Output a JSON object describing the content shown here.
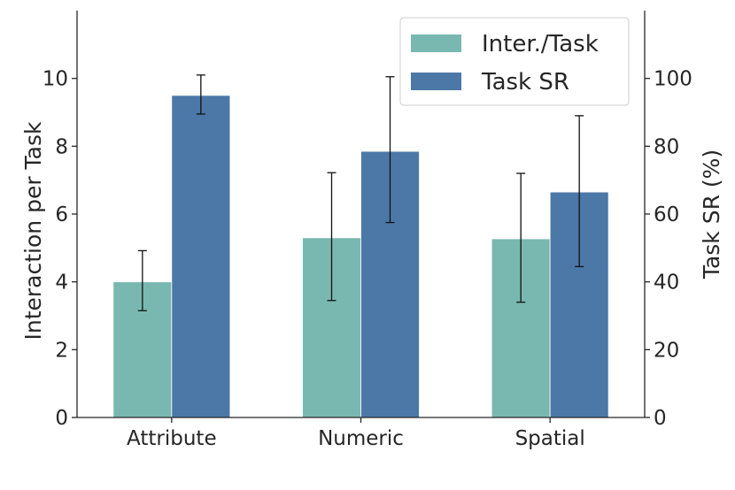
{
  "chart_data": {
    "type": "bar",
    "categories": [
      "Attribute",
      "Numeric",
      "Spatial"
    ],
    "series": [
      {
        "name": "Inter./Task",
        "axis": "left",
        "color": "#79b8b0",
        "values": [
          4.0,
          5.3,
          5.27
        ],
        "err_low": [
          3.15,
          3.45,
          3.4
        ],
        "err_high": [
          4.92,
          7.22,
          7.2
        ]
      },
      {
        "name": "Task SR",
        "axis": "right",
        "color": "#4c78a8",
        "values": [
          95,
          78.5,
          66.5
        ],
        "err_low": [
          89.5,
          57.5,
          44.5
        ],
        "err_high": [
          101,
          100.5,
          89
        ]
      }
    ],
    "y_left": {
      "label": "Interaction per Task",
      "ylim": [
        0,
        12
      ],
      "ticks": [
        "0",
        "2",
        "4",
        "6",
        "8",
        "10"
      ]
    },
    "y_right": {
      "label": "Task SR (%)",
      "ylim": [
        0,
        120
      ],
      "ticks": [
        "0",
        "20",
        "40",
        "60",
        "80",
        "100"
      ]
    },
    "legend_position": "top-right",
    "grid": false
  }
}
